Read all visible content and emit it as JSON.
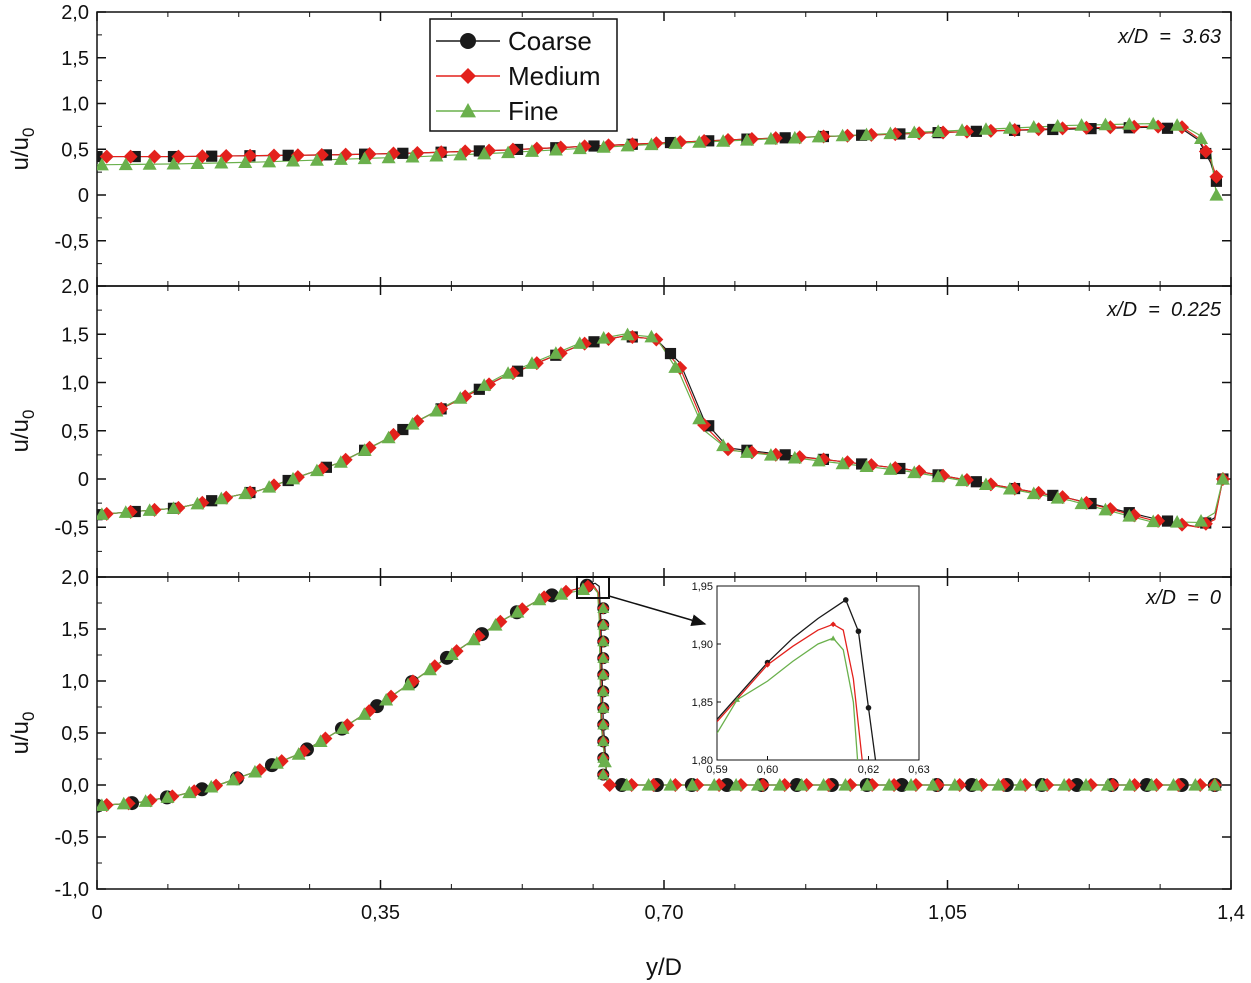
{
  "figure": {
    "xlabel": "y/D",
    "ylabel": "u/u",
    "ylabel_sub": "0"
  },
  "colors": {
    "coarse": "#1a1a1a",
    "medium": "#e3211c",
    "fine": "#6ab04c",
    "axis": "#111111"
  },
  "legend": {
    "entries": [
      {
        "label": "Coarse",
        "color_key": "coarse",
        "marker": "circle"
      },
      {
        "label": "Medium",
        "color_key": "medium",
        "marker": "diamond"
      },
      {
        "label": "Fine",
        "color_key": "fine",
        "marker": "triangle"
      }
    ]
  },
  "chart_data": [
    {
      "type": "line",
      "annotation": "x/D  =  3.63",
      "xlim": [
        0,
        1.4
      ],
      "ylim": [
        -1.0,
        2.0
      ],
      "yticks": [
        -0.5,
        0,
        0.5,
        1.0,
        1.5,
        2.0
      ],
      "ytick_labels": [
        "-0,5",
        "0",
        "0,5",
        "1,0",
        "1,5",
        "2,0"
      ],
      "xlabel": "y/D",
      "ylabel": "u/u0",
      "series": [
        {
          "name": "Coarse",
          "x": [
            0,
            0.1,
            0.2,
            0.3,
            0.4,
            0.5,
            0.6,
            0.7,
            0.8,
            0.9,
            1.0,
            1.1,
            1.2,
            1.3,
            1.34,
            1.36,
            1.375,
            1.382
          ],
          "y": [
            0.42,
            0.42,
            0.43,
            0.44,
            0.46,
            0.49,
            0.53,
            0.57,
            0.61,
            0.64,
            0.67,
            0.7,
            0.72,
            0.74,
            0.72,
            0.6,
            0.35,
            0.15
          ]
        },
        {
          "name": "Medium",
          "x": [
            0,
            0.1,
            0.2,
            0.3,
            0.4,
            0.5,
            0.6,
            0.7,
            0.8,
            0.9,
            1.0,
            1.1,
            1.2,
            1.3,
            1.34,
            1.36,
            1.375,
            1.382
          ],
          "y": [
            0.42,
            0.42,
            0.43,
            0.44,
            0.46,
            0.49,
            0.53,
            0.57,
            0.61,
            0.64,
            0.67,
            0.7,
            0.73,
            0.75,
            0.74,
            0.62,
            0.38,
            0.2
          ]
        },
        {
          "name": "Fine",
          "x": [
            0,
            0.1,
            0.2,
            0.3,
            0.4,
            0.5,
            0.6,
            0.7,
            0.8,
            0.9,
            1.0,
            1.1,
            1.2,
            1.3,
            1.34,
            1.36,
            1.375,
            1.382
          ],
          "y": [
            0.33,
            0.34,
            0.36,
            0.39,
            0.42,
            0.46,
            0.51,
            0.56,
            0.6,
            0.64,
            0.68,
            0.72,
            0.76,
            0.78,
            0.76,
            0.66,
            0.45,
            0.0
          ]
        }
      ]
    },
    {
      "type": "line",
      "annotation": "x/D  =  0.225",
      "xlim": [
        0,
        1.4
      ],
      "ylim": [
        -1.0,
        2.0
      ],
      "yticks": [
        -0.5,
        0,
        0.5,
        1.0,
        1.5,
        2.0
      ],
      "ytick_labels": [
        "-0,5",
        "0",
        "0,5",
        "1,0",
        "1,5",
        "2,0"
      ],
      "xlabel": "y/D",
      "ylabel": "u/u0",
      "series": [
        {
          "name": "Coarse",
          "x": [
            0,
            0.1,
            0.2,
            0.3,
            0.35,
            0.4,
            0.5,
            0.6,
            0.65,
            0.69,
            0.72,
            0.75,
            0.78,
            0.9,
            1.0,
            1.1,
            1.2,
            1.3,
            1.36,
            1.38,
            1.39
          ],
          "y": [
            -0.37,
            -0.3,
            -0.12,
            0.17,
            0.38,
            0.62,
            1.05,
            1.4,
            1.48,
            1.45,
            1.2,
            0.6,
            0.32,
            0.2,
            0.1,
            -0.05,
            -0.2,
            -0.4,
            -0.5,
            -0.4,
            0.0
          ]
        },
        {
          "name": "Medium",
          "x": [
            0,
            0.1,
            0.2,
            0.3,
            0.35,
            0.4,
            0.5,
            0.6,
            0.65,
            0.69,
            0.72,
            0.75,
            0.78,
            0.9,
            1.0,
            1.1,
            1.2,
            1.3,
            1.36,
            1.38,
            1.39
          ],
          "y": [
            -0.37,
            -0.3,
            -0.12,
            0.17,
            0.38,
            0.62,
            1.05,
            1.4,
            1.48,
            1.45,
            1.15,
            0.55,
            0.3,
            0.2,
            0.1,
            -0.05,
            -0.2,
            -0.42,
            -0.5,
            -0.42,
            0.0
          ]
        },
        {
          "name": "Fine",
          "x": [
            0,
            0.1,
            0.2,
            0.3,
            0.35,
            0.4,
            0.5,
            0.6,
            0.65,
            0.69,
            0.72,
            0.75,
            0.78,
            0.9,
            1.0,
            1.1,
            1.2,
            1.3,
            1.36,
            1.38,
            1.39
          ],
          "y": [
            -0.37,
            -0.3,
            -0.12,
            0.17,
            0.38,
            0.62,
            1.07,
            1.42,
            1.5,
            1.47,
            1.08,
            0.5,
            0.3,
            0.18,
            0.08,
            -0.06,
            -0.22,
            -0.44,
            -0.45,
            -0.35,
            0.0
          ]
        }
      ]
    },
    {
      "type": "line",
      "annotation": "x/D  =  0",
      "xlim": [
        0,
        1.4
      ],
      "ylim": [
        -1.0,
        2.0
      ],
      "xticks": [
        0,
        0.35,
        0.7,
        1.05,
        1.4
      ],
      "xtick_labels": [
        "0",
        "0,35",
        "0,70",
        "1,05",
        "1,4"
      ],
      "yticks": [
        -1.0,
        -0.5,
        0,
        0.5,
        1.0,
        1.5,
        2.0
      ],
      "ytick_labels": [
        "-1,0",
        "-0,5",
        "0,0",
        "0,5",
        "1,0",
        "1,5",
        "2,0"
      ],
      "xlabel": "y/D",
      "ylabel": "u/u0",
      "series": [
        {
          "name": "Coarse",
          "x": [
            0,
            0.05,
            0.1,
            0.15,
            0.2,
            0.25,
            0.3,
            0.35,
            0.4,
            0.45,
            0.5,
            0.55,
            0.59,
            0.615,
            0.62,
            0.622,
            0.625,
            0.63,
            0.7,
            0.8,
            0.9,
            1.0,
            1.1,
            1.2,
            1.3,
            1.38
          ],
          "y": [
            -0.2,
            -0.17,
            -0.1,
            0.0,
            0.14,
            0.3,
            0.53,
            0.78,
            1.05,
            1.32,
            1.58,
            1.8,
            1.88,
            1.94,
            1.91,
            1.6,
            0.6,
            0.0,
            0.0,
            0.0,
            0.0,
            0.0,
            0.0,
            0.0,
            0.0,
            0.0
          ]
        },
        {
          "name": "Medium",
          "x": [
            0,
            0.05,
            0.1,
            0.15,
            0.2,
            0.25,
            0.3,
            0.35,
            0.4,
            0.45,
            0.5,
            0.55,
            0.59,
            0.613,
            0.619,
            0.621,
            0.623,
            0.63,
            0.7,
            0.8,
            0.9,
            1.0,
            1.1,
            1.2,
            1.3,
            1.38
          ],
          "y": [
            -0.2,
            -0.17,
            -0.1,
            0.0,
            0.14,
            0.3,
            0.53,
            0.78,
            1.05,
            1.32,
            1.58,
            1.8,
            1.88,
            1.92,
            1.85,
            1.6,
            0.6,
            0.0,
            0.0,
            0.0,
            0.0,
            0.0,
            0.0,
            0.0,
            0.0,
            0.0
          ]
        },
        {
          "name": "Fine",
          "x": [
            0,
            0.05,
            0.1,
            0.15,
            0.2,
            0.25,
            0.3,
            0.35,
            0.4,
            0.45,
            0.5,
            0.55,
            0.59,
            0.612,
            0.618,
            0.62,
            0.622,
            0.63,
            0.7,
            0.8,
            0.9,
            1.0,
            1.1,
            1.2,
            1.3,
            1.38
          ],
          "y": [
            -0.2,
            -0.17,
            -0.1,
            0.0,
            0.14,
            0.3,
            0.53,
            0.78,
            1.05,
            1.32,
            1.58,
            1.8,
            1.86,
            1.905,
            1.85,
            1.6,
            0.6,
            0.0,
            0.0,
            0.0,
            0.0,
            0.0,
            0.0,
            0.0,
            0.0,
            0.0
          ]
        }
      ]
    },
    {
      "type": "line",
      "role": "inset",
      "xlim": [
        0.59,
        0.63
      ],
      "ylim": [
        1.8,
        1.95
      ],
      "xticks": [
        0.59,
        0.6,
        0.62,
        0.63
      ],
      "xtick_labels": [
        "0,59",
        "0,60",
        "0,62",
        "0,63"
      ],
      "yticks": [
        1.8,
        1.85,
        1.9,
        1.95
      ],
      "ytick_labels": [
        "1,80",
        "1,85",
        "1,90",
        "1,95"
      ],
      "series": [
        {
          "name": "Coarse",
          "x": [
            0.59,
            0.6,
            0.605,
            0.61,
            0.6155,
            0.618,
            0.62,
            0.622
          ],
          "y": [
            1.835,
            1.884,
            1.905,
            1.922,
            1.938,
            1.911,
            1.845,
            1.78
          ]
        },
        {
          "name": "Medium",
          "x": [
            0.59,
            0.6,
            0.605,
            0.61,
            0.613,
            0.615,
            0.617,
            0.619
          ],
          "y": [
            1.833,
            1.882,
            1.898,
            1.912,
            1.917,
            1.912,
            1.87,
            1.79
          ]
        },
        {
          "name": "Fine",
          "x": [
            0.59,
            0.594,
            0.6,
            0.605,
            0.61,
            0.613,
            0.615,
            0.617,
            0.618
          ],
          "y": [
            1.823,
            1.852,
            1.868,
            1.885,
            1.9,
            1.905,
            1.895,
            1.85,
            1.79
          ]
        }
      ]
    }
  ]
}
